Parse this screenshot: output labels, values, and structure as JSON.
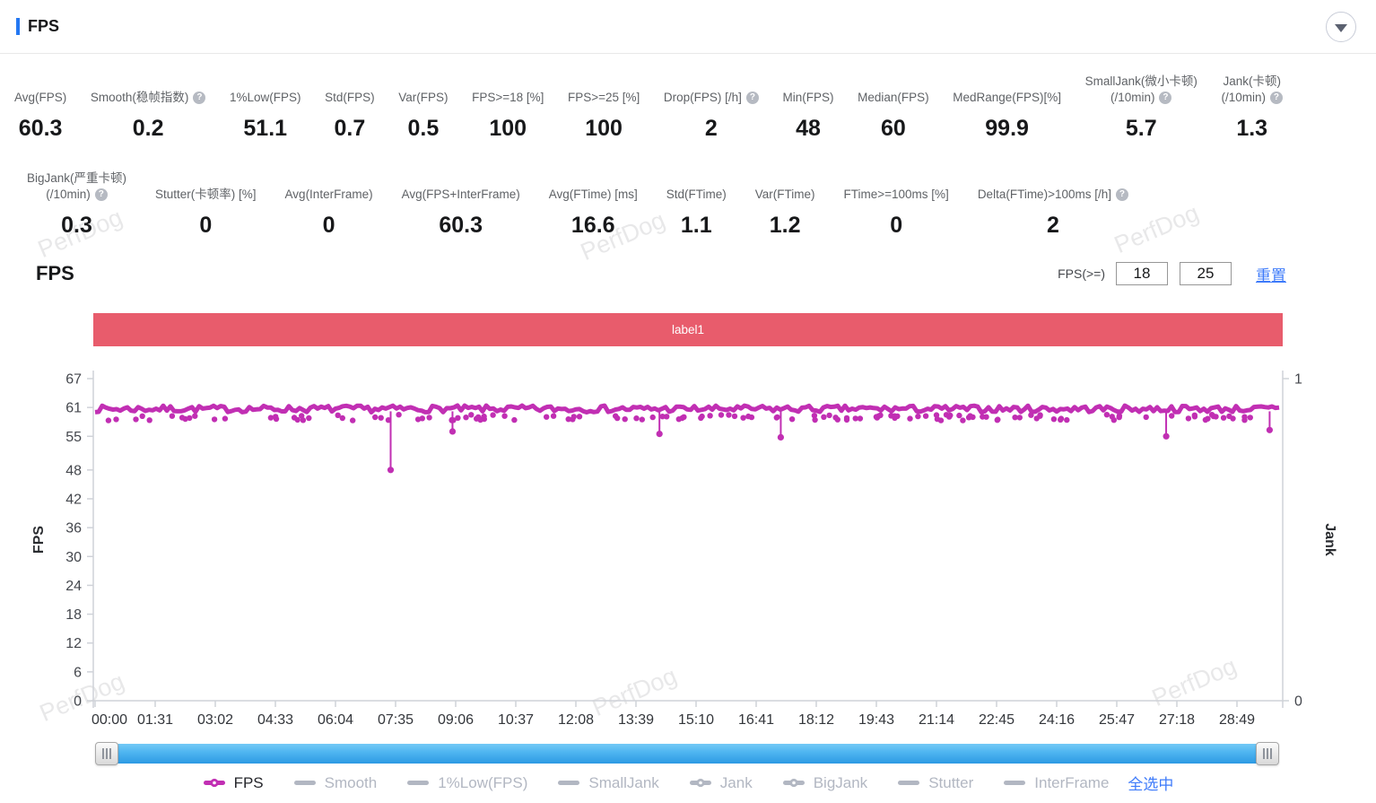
{
  "panel": {
    "title": "FPS"
  },
  "colors": {
    "accent": "#2478f2",
    "banner": "#e85c6c",
    "series": "#c12fb3",
    "link": "#3e7bfa",
    "legend_inactive": "#b2b7c2",
    "axis_line": "#cfd2d8",
    "axis_text": "#44474d"
  },
  "watermark": "PerfDog",
  "metrics_row1": [
    {
      "label_lines": [
        "Avg(FPS)"
      ],
      "help": false,
      "value": "60.3"
    },
    {
      "label_lines": [
        "Smooth(稳帧指数)"
      ],
      "help": true,
      "value": "0.2"
    },
    {
      "label_lines": [
        "1%Low(FPS)"
      ],
      "help": false,
      "value": "51.1"
    },
    {
      "label_lines": [
        "Std(FPS)"
      ],
      "help": false,
      "value": "0.7"
    },
    {
      "label_lines": [
        "Var(FPS)"
      ],
      "help": false,
      "value": "0.5"
    },
    {
      "label_lines": [
        "FPS>=18 [%]"
      ],
      "help": false,
      "value": "100"
    },
    {
      "label_lines": [
        "FPS>=25 [%]"
      ],
      "help": false,
      "value": "100"
    },
    {
      "label_lines": [
        "Drop(FPS) [/h]"
      ],
      "help": true,
      "value": "2"
    },
    {
      "label_lines": [
        "Min(FPS)"
      ],
      "help": false,
      "value": "48"
    },
    {
      "label_lines": [
        "Median(FPS)"
      ],
      "help": false,
      "value": "60"
    },
    {
      "label_lines": [
        "MedRange(FPS)[%]"
      ],
      "help": false,
      "value": "99.9"
    },
    {
      "label_lines": [
        "SmallJank(微小卡顿)",
        "(/10min)"
      ],
      "help": true,
      "value": "5.7"
    },
    {
      "label_lines": [
        "Jank(卡顿)",
        "(/10min)"
      ],
      "help": true,
      "value": "1.3"
    }
  ],
  "metrics_row2": [
    {
      "label_lines": [
        "BigJank(严重卡顿)",
        "(/10min)"
      ],
      "help": true,
      "value": "0.3"
    },
    {
      "label_lines": [
        "Stutter(卡顿率) [%]"
      ],
      "help": false,
      "value": "0"
    },
    {
      "label_lines": [
        "Avg(InterFrame)"
      ],
      "help": false,
      "value": "0"
    },
    {
      "label_lines": [
        "Avg(FPS+InterFrame)"
      ],
      "help": false,
      "value": "60.3"
    },
    {
      "label_lines": [
        "Avg(FTime) [ms]"
      ],
      "help": false,
      "value": "16.6"
    },
    {
      "label_lines": [
        "Std(FTime)"
      ],
      "help": false,
      "value": "1.1"
    },
    {
      "label_lines": [
        "Var(FTime)"
      ],
      "help": false,
      "value": "1.2"
    },
    {
      "label_lines": [
        "FTime>=100ms [%]"
      ],
      "help": false,
      "value": "0"
    },
    {
      "label_lines": [
        "Delta(FTime)>100ms [/h]"
      ],
      "help": true,
      "value": "2"
    }
  ],
  "section": {
    "title": "FPS",
    "filter_label": "FPS(>=)",
    "filter_low": "18",
    "filter_high": "25",
    "reset_label": "重置"
  },
  "banner": {
    "label": "label1"
  },
  "chart_data": {
    "type": "line",
    "title": "FPS",
    "x_ticks": [
      "00:00",
      "01:31",
      "03:02",
      "04:33",
      "06:04",
      "07:35",
      "09:06",
      "10:37",
      "12:08",
      "13:39",
      "15:10",
      "16:41",
      "18:12",
      "19:43",
      "21:14",
      "22:45",
      "24:16",
      "25:47",
      "27:18",
      "28:49"
    ],
    "y_axis_left": {
      "label": "FPS",
      "min": 0,
      "max": 67,
      "ticks": [
        67,
        61,
        55,
        48,
        42,
        36,
        30,
        24,
        18,
        12,
        6,
        0
      ]
    },
    "y_axis_right": {
      "label": "Jank",
      "min": 0,
      "max": 1,
      "ticks": [
        1,
        0
      ]
    },
    "grid": false,
    "series": [
      {
        "name": "FPS",
        "color": "#c12fb3",
        "baseline": 60.7,
        "band_halfwidth": 0.7,
        "scatter_range": [
          58.3,
          59.5
        ],
        "scatter_count": 140,
        "dips": [
          {
            "fx": 0.25,
            "value": 48
          },
          {
            "fx": 0.302,
            "value": 56
          },
          {
            "fx": 0.476,
            "value": 55.5
          },
          {
            "fx": 0.578,
            "value": 54.8
          },
          {
            "fx": 0.902,
            "value": 55
          },
          {
            "fx": 0.989,
            "value": 56.3
          }
        ]
      }
    ],
    "legend": [
      {
        "label": "FPS",
        "active": true,
        "dot": true
      },
      {
        "label": "Smooth",
        "active": false,
        "dot": false
      },
      {
        "label": "1%Low(FPS)",
        "active": false,
        "dot": false
      },
      {
        "label": "SmallJank",
        "active": false,
        "dot": false
      },
      {
        "label": "Jank",
        "active": false,
        "dot": true
      },
      {
        "label": "BigJank",
        "active": false,
        "dot": true
      },
      {
        "label": "Stutter",
        "active": false,
        "dot": false
      },
      {
        "label": "InterFrame",
        "active": false,
        "dot": false
      }
    ],
    "select_all_label": "全选中"
  }
}
